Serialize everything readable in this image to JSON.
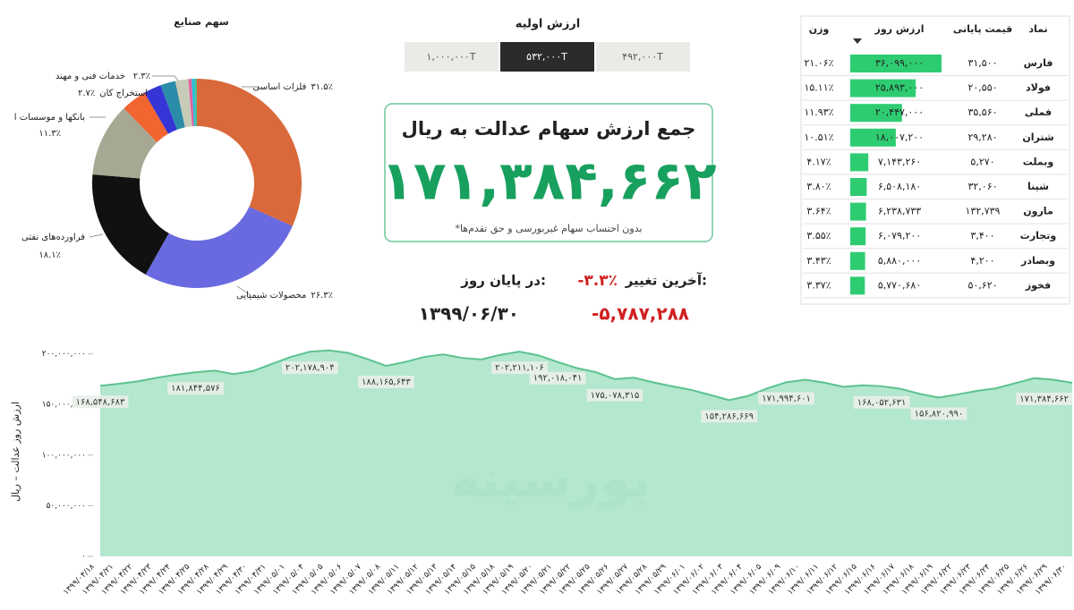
{
  "chart_data": [
    {
      "type": "pie",
      "donut": true,
      "title": "سهم صنایع",
      "categories": [
        "فلزات اساسی",
        "محصولات شیمیایی",
        "فراورده‌های نفتی",
        "بانکها و موسسات ا",
        null,
        "استخراج کان",
        "خدمات فنی و مهند",
        null,
        null,
        null,
        null
      ],
      "values": [
        31.5,
        26.3,
        18.1,
        11.3,
        3.9,
        2.7,
        2.3,
        2.0,
        0.5,
        0.5,
        0.3
      ],
      "value_labels": [
        "۳۱.۵٪",
        "۲۶.۳٪",
        "۱۸.۱٪",
        "۱۱.۳٪",
        null,
        "۲.۷٪",
        "۲.۳٪",
        null,
        null,
        null,
        null
      ],
      "colors": [
        "#d9693a",
        "#6a6ae0",
        "#111111",
        "#a6a893",
        "#f26430",
        "#3535d6",
        "#2b8caa",
        "#c8cbb8",
        "#e060a0",
        "#2bc0d8",
        "#55bb88"
      ]
    },
    {
      "type": "area",
      "y_label": "ارزش روز عدالت – ریال",
      "watermark": "بورسینه",
      "color": "#a6e3c6",
      "line_color": "#5cc28f",
      "categories": [
        "۱۳۹۹/۰۴/۱۸",
        "۱۳۹۹/۰۴/۲۱",
        "۱۳۹۹/۰۴/۲۲",
        "۱۳۹۹/۰۴/۲۳",
        "۱۳۹۹/۰۴/۲۴",
        "۱۳۹۹/۰۴/۲۵",
        "۱۳۹۹/۰۴/۲۸",
        "۱۳۹۹/۰۴/۲۹",
        "۱۳۹۹/۰۴/۳۰",
        "۱۳۹۹/۰۴/۳۱",
        "۱۳۹۹/۰۵/۰۱",
        "۱۳۹۹/۰۵/۰۴",
        "۱۳۹۹/۰۵/۰۵",
        "۱۳۹۹/۰۵/۰۶",
        "۱۳۹۹/۰۵/۰۷",
        "۱۳۹۹/۰۵/۰۸",
        "۱۳۹۹/۰۵/۱۱",
        "۱۳۹۹/۰۵/۱۲",
        "۱۳۹۹/۰۵/۱۳",
        "۱۳۹۹/۰۵/۱۴",
        "۱۳۹۹/۰۵/۱۵",
        "۱۳۹۹/۰۵/۱۸",
        "۱۳۹۹/۰۵/۱۹",
        "۱۳۹۹/۰۵/۲۰",
        "۱۳۹۹/۰۵/۲۱",
        "۱۳۹۹/۰۵/۲۲",
        "۱۳۹۹/۰۵/۲۵",
        "۱۳۹۹/۰۵/۲۶",
        "۱۳۹۹/۰۵/۲۷",
        "۱۳۹۹/۰۵/۲۸",
        "۱۳۹۹/۰۵/۲۹",
        "۱۳۹۹/۰۶/۰۱",
        "۱۳۹۹/۰۶/۰۲",
        "۱۳۹۹/۰۶/۰۳",
        "۱۳۹۹/۰۶/۰۴",
        "۱۳۹۹/۰۶/۰۵",
        "۱۳۹۹/۰۶/۰۹",
        "۱۳۹۹/۰۶/۱۰",
        "۱۳۹۹/۰۶/۱۱",
        "۱۳۹۹/۰۶/۱۲",
        "۱۳۹۹/۰۶/۱۵",
        "۱۳۹۹/۰۶/۱۶",
        "۱۳۹۹/۰۶/۱۷",
        "۱۳۹۹/۰۶/۱۸",
        "۱۳۹۹/۰۶/۱۹",
        "۱۳۹۹/۰۶/۲۲",
        "۱۳۹۹/۰۶/۲۳",
        "۱۳۹۹/۰۶/۲۴",
        "۱۳۹۹/۰۶/۲۵",
        "۱۳۹۹/۰۶/۲۶",
        "۱۳۹۹/۰۶/۲۹",
        "۱۳۹۹/۰۶/۳۰"
      ],
      "values": [
        168548683,
        170500000,
        173000000,
        176500000,
        179500000,
        181844576,
        183500000,
        180000000,
        183000000,
        190000000,
        197000000,
        202178904,
        203500000,
        201000000,
        195000000,
        188165643,
        192000000,
        197000000,
        199500000,
        196000000,
        194500000,
        199000000,
        202211106,
        198500000,
        192018041,
        186000000,
        182000000,
        175078315,
        176500000,
        172000000,
        168000000,
        164500000,
        159500000,
        154286669,
        158500000,
        166000000,
        171994601,
        174500000,
        171500000,
        167500000,
        169000000,
        168052631,
        165500000,
        160500000,
        156820990,
        160000000,
        163500000,
        166000000,
        171000000,
        176000000,
        174500000,
        171384662
      ],
      "value_labels": [
        "۱۶۸,۵۴۸,۶۸۳",
        null,
        null,
        null,
        null,
        "۱۸۱,۸۴۴,۵۷۶",
        null,
        null,
        null,
        null,
        null,
        "۲۰۲,۱۷۸,۹۰۴",
        null,
        null,
        null,
        "۱۸۸,۱۶۵,۶۴۳",
        null,
        null,
        null,
        null,
        null,
        null,
        "۲۰۲,۲۱۱,۱۰۶",
        null,
        "۱۹۲,۰۱۸,۰۴۱",
        null,
        null,
        "۱۷۵,۰۷۸,۳۱۵",
        null,
        null,
        null,
        null,
        null,
        "۱۵۴,۲۸۶,۶۶۹",
        null,
        null,
        "۱۷۱,۹۹۴,۶۰۱",
        null,
        null,
        null,
        null,
        "۱۶۸,۰۵۲,۶۳۱",
        null,
        null,
        "۱۵۶,۸۲۰,۹۹۰",
        null,
        null,
        null,
        null,
        null,
        null,
        "۱۷۱,۳۸۴,۶۶۲"
      ],
      "ylim": [
        0,
        205000000
      ],
      "yticks": [
        {
          "value": 0,
          "label": "۰"
        },
        {
          "value": 50000000,
          "label": "۵۰,۰۰۰,۰۰۰"
        },
        {
          "value": 100000000,
          "label": "۱۰۰,۰۰۰,۰۰۰"
        },
        {
          "value": 150000000,
          "label": "۱۵۰,۰۰۰,۰۰۰"
        },
        {
          "value": 200000000,
          "label": "۲۰۰,۰۰۰,۰۰۰"
        }
      ],
      "grid": false
    }
  ],
  "initial_value": {
    "title": "ارزش اولیه",
    "options": [
      "۱,۰۰۰,۰۰۰T",
      "۵۳۲,۰۰۰T",
      "۴۹۲,۰۰۰T"
    ],
    "selected": 1
  },
  "summary": {
    "title": "جمع ارزش سهام عدالت به ریال",
    "total": "۱۷۱,۳۸۴,۶۶۲",
    "note": "*بدون احتساب سهام غیربورسی و حق تقدم‌ها",
    "change_label": "آخرین تغییر:",
    "change": "-۳.۳٪",
    "end_label": "در پایان روز:",
    "date": "۱۳۹۹/۰۶/۳۰",
    "change_amount": "-۵,۷۸۷,۲۸۸"
  },
  "table": {
    "columns": [
      "نماد",
      "قیمت پایانی",
      "ارزش روز",
      "وزن"
    ],
    "bar_column": 2,
    "bar_color": "#2ecc71",
    "rows": [
      [
        "فارس",
        "۳۱,۵۰۰",
        "۳۶,۰۹۹,۰۰۰",
        "۲۱.۰۶٪"
      ],
      [
        "فولاد",
        "۲۰,۵۵۰",
        "۲۵,۸۹۳,۰۰۰",
        "۱۵.۱۱٪"
      ],
      [
        "فملی",
        "۳۵,۵۶۰",
        "۲۰,۴۴۷,۰۰۰",
        "۱۱.۹۳٪"
      ],
      [
        "شتران",
        "۲۹,۲۸۰",
        "۱۸,۰۰۷,۲۰۰",
        "۱۰.۵۱٪"
      ],
      [
        "وبملت",
        "۵,۲۷۰",
        "۷,۱۴۳,۲۶۰",
        "۴.۱۷٪"
      ],
      [
        "شپنا",
        "۳۲,۰۶۰",
        "۶,۵۰۸,۱۸۰",
        "۳.۸۰٪"
      ],
      [
        "مارون",
        "۱۳۲,۷۳۹",
        "۶,۲۳۸,۷۳۳",
        "۳.۶۴٪"
      ],
      [
        "وتجارت",
        "۳,۴۰۰",
        "۶,۰۷۹,۲۰۰",
        "۳.۵۵٪"
      ],
      [
        "وبصادر",
        "۴,۲۰۰",
        "۵,۸۸۰,۰۰۰",
        "۳.۴۳٪"
      ],
      [
        "فخوز",
        "۵۰,۶۲۰",
        "۵,۷۷۰,۶۸۰",
        "۳.۳۷٪"
      ]
    ]
  }
}
